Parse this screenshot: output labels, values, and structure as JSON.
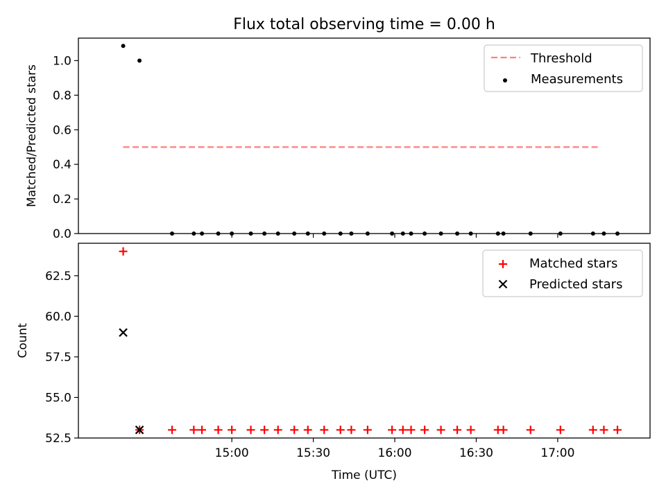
{
  "chart_data": [
    {
      "panel": "top",
      "type": "scatter",
      "title": "Flux total observing time = 0.00 h",
      "ylabel": "Matched/Predicted stars",
      "xlabel": "",
      "ylim": [
        0.0,
        1.13
      ],
      "yticks": [
        "0.0",
        "0.2",
        "0.4",
        "0.6",
        "0.8",
        "1.0"
      ],
      "ytick_values": [
        0.0,
        0.2,
        0.4,
        0.6,
        0.8,
        1.0
      ],
      "legend_position": "top-right",
      "series": [
        {
          "name": "Threshold",
          "kind": "dashed-line",
          "color": "#ff7f7f",
          "x": [
            "14:20",
            "17:15"
          ],
          "y": [
            0.5,
            0.5
          ]
        },
        {
          "name": "Measurements",
          "kind": "dots",
          "color": "#000000",
          "x": [
            "14:20",
            "14:26",
            "14:38",
            "14:46",
            "14:49",
            "14:55",
            "15:00",
            "15:07",
            "15:12",
            "15:17",
            "15:23",
            "15:28",
            "15:34",
            "15:40",
            "15:44",
            "15:50",
            "15:59",
            "16:03",
            "16:06",
            "16:11",
            "16:17",
            "16:23",
            "16:28",
            "16:38",
            "16:40",
            "16:50",
            "17:01",
            "17:13",
            "17:17",
            "17:22"
          ],
          "y": [
            1.085,
            1.0,
            0.0,
            0.0,
            0.0,
            0.0,
            0.0,
            0.0,
            0.0,
            0.0,
            0.0,
            0.0,
            0.0,
            0.0,
            0.0,
            0.0,
            0.0,
            0.0,
            0.0,
            0.0,
            0.0,
            0.0,
            0.0,
            0.0,
            0.0,
            0.0,
            0.0,
            0.0,
            0.0,
            0.0
          ]
        }
      ]
    },
    {
      "panel": "bottom",
      "type": "scatter",
      "title": "",
      "ylabel": "Count",
      "xlabel": "Time (UTC)",
      "ylim": [
        52.5,
        64.5
      ],
      "yticks": [
        "52.5",
        "55.0",
        "57.5",
        "60.0",
        "62.5"
      ],
      "ytick_values": [
        52.5,
        55.0,
        57.5,
        60.0,
        62.5
      ],
      "xticks": [
        "15:00",
        "15:30",
        "16:00",
        "16:30",
        "17:00"
      ],
      "legend_position": "top-right",
      "series": [
        {
          "name": "Matched stars",
          "kind": "plus",
          "color": "#ff0000",
          "x": [
            "14:20",
            "14:26",
            "14:38",
            "14:46",
            "14:49",
            "14:55",
            "15:00",
            "15:07",
            "15:12",
            "15:17",
            "15:23",
            "15:28",
            "15:34",
            "15:40",
            "15:44",
            "15:50",
            "15:59",
            "16:03",
            "16:06",
            "16:11",
            "16:17",
            "16:23",
            "16:28",
            "16:38",
            "16:40",
            "16:50",
            "17:01",
            "17:13",
            "17:17",
            "17:22"
          ],
          "y": [
            64,
            53,
            53,
            53,
            53,
            53,
            53,
            53,
            53,
            53,
            53,
            53,
            53,
            53,
            53,
            53,
            53,
            53,
            53,
            53,
            53,
            53,
            53,
            53,
            53,
            53,
            53,
            53,
            53,
            53
          ]
        },
        {
          "name": "Predicted stars",
          "kind": "x",
          "color": "#000000",
          "x": [
            "14:20",
            "14:26"
          ],
          "y": [
            59,
            53
          ]
        }
      ]
    }
  ]
}
